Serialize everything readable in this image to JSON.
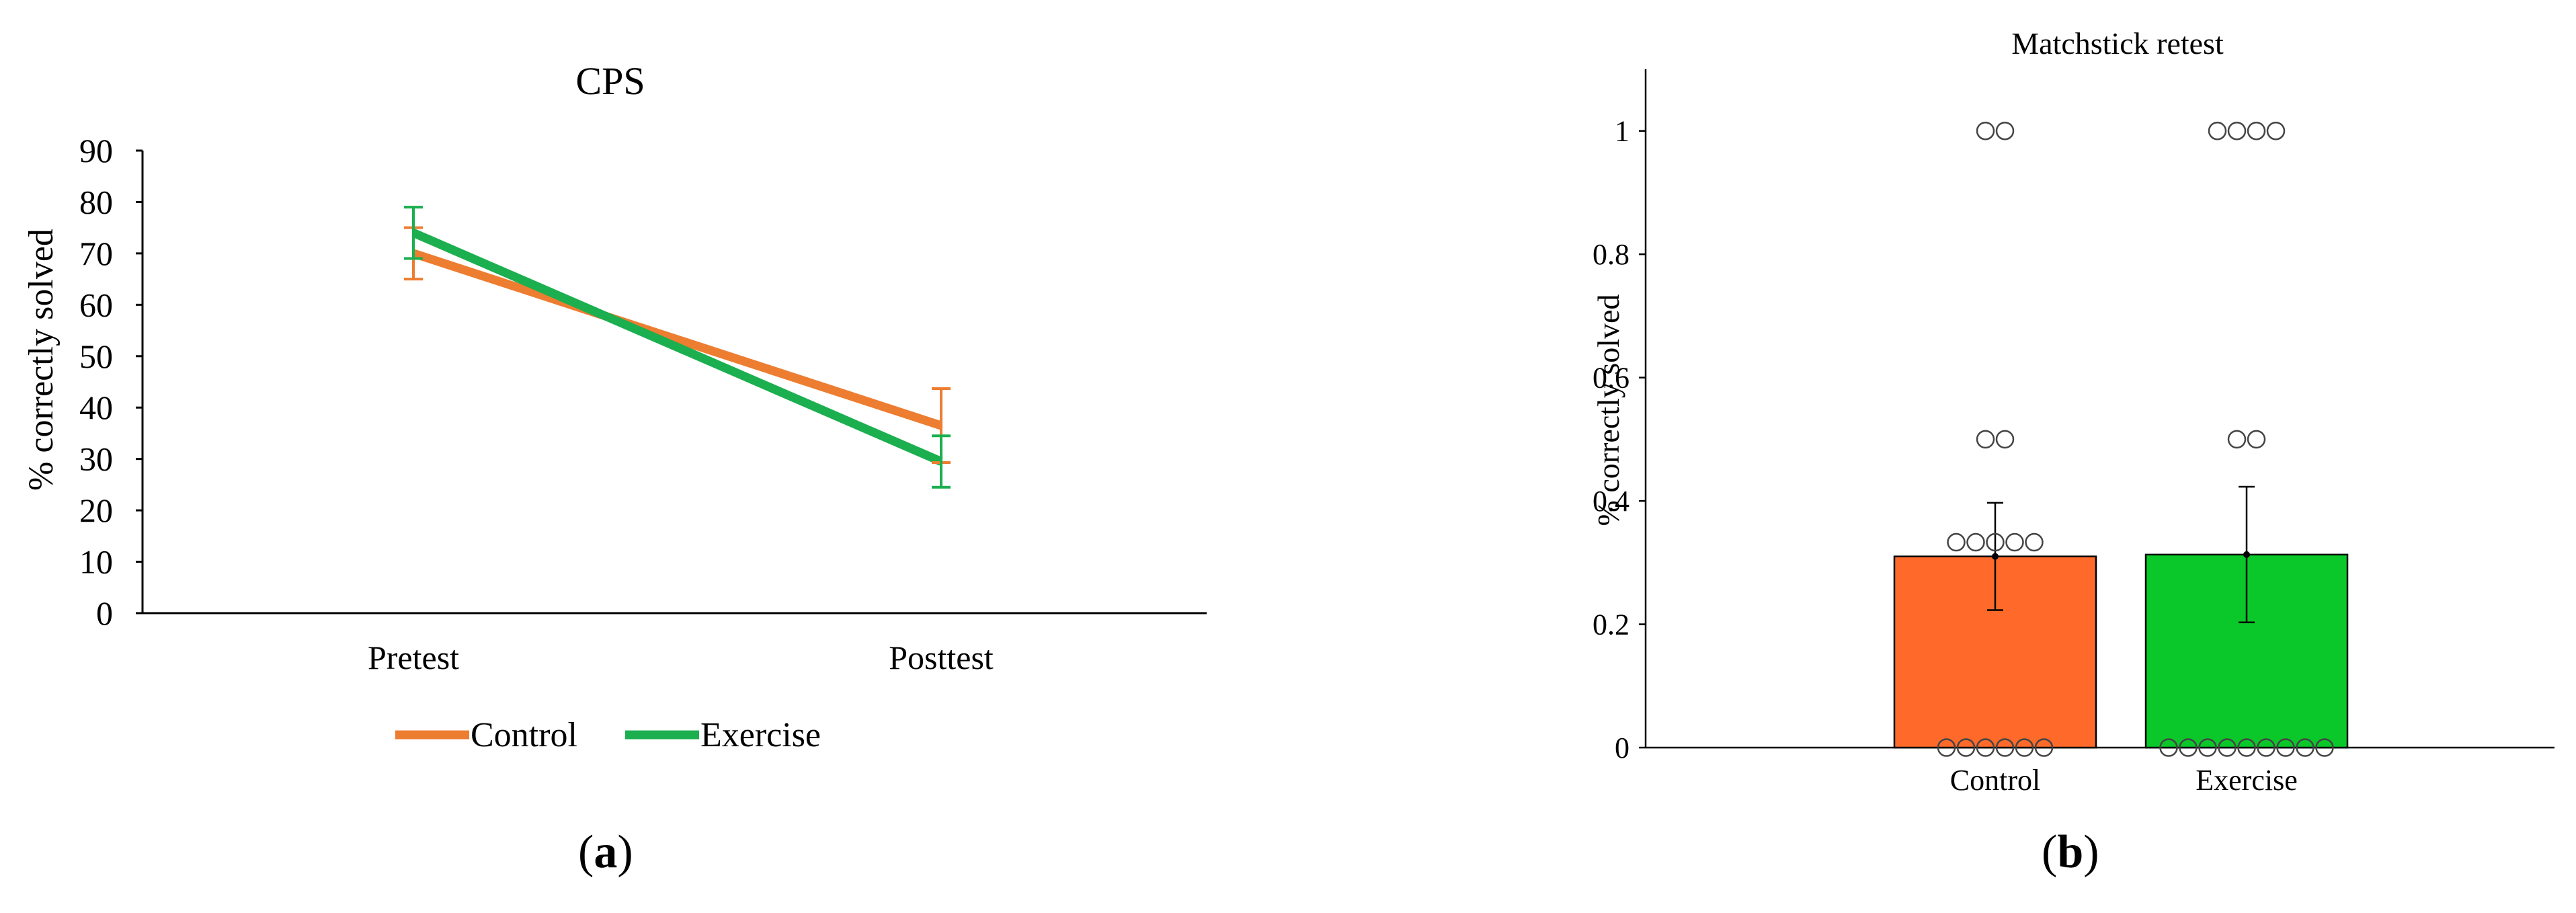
{
  "panel_a": {
    "label_open": "(",
    "label_letter": "a",
    "label_close": ")"
  },
  "panel_b": {
    "label_open": "(",
    "label_letter": "b",
    "label_close": ")"
  },
  "chart_data": [
    {
      "type": "line",
      "title": "CPS",
      "xlabel": "",
      "ylabel": "% correctly solved",
      "categories": [
        "Pretest",
        "Posttest"
      ],
      "ylim": [
        0,
        90
      ],
      "yticks": [
        0,
        10,
        20,
        30,
        40,
        50,
        60,
        70,
        80,
        90
      ],
      "grid": false,
      "legend_position": "bottom-center",
      "series": [
        {
          "name": "Control",
          "color": "#ED7D31",
          "values": [
            70,
            36.5
          ],
          "error": [
            5,
            7.2
          ]
        },
        {
          "name": "Exercise",
          "color": "#1BAF4F",
          "values": [
            74,
            29.5
          ],
          "error": [
            5,
            5
          ]
        }
      ]
    },
    {
      "type": "bar",
      "title": "Matchstick retest",
      "xlabel": "",
      "ylabel": "% correctly solved",
      "categories": [
        "Control",
        "Exercise"
      ],
      "ylim": [
        0,
        1.1
      ],
      "yticks": [
        0,
        0.2,
        0.4,
        0.6,
        0.8,
        1
      ],
      "ytick_labels": [
        "0",
        "0.2",
        "0.4",
        "0.6",
        "0.8",
        "1"
      ],
      "grid": false,
      "values": [
        0.31,
        0.313
      ],
      "colors": [
        "#FF6A2A",
        "#0AC829"
      ],
      "error": [
        0.087,
        0.11
      ],
      "individual_points": [
        {
          "category": "Control",
          "y": 1,
          "count": 2
        },
        {
          "category": "Control",
          "y": 0.5,
          "count": 2
        },
        {
          "category": "Control",
          "y": 0.333,
          "count": 5
        },
        {
          "category": "Control",
          "y": 0,
          "count": 6
        },
        {
          "category": "Exercise",
          "y": 1,
          "count": 4
        },
        {
          "category": "Exercise",
          "y": 0.5,
          "count": 2
        },
        {
          "category": "Exercise",
          "y": 0,
          "count": 9
        }
      ]
    }
  ]
}
